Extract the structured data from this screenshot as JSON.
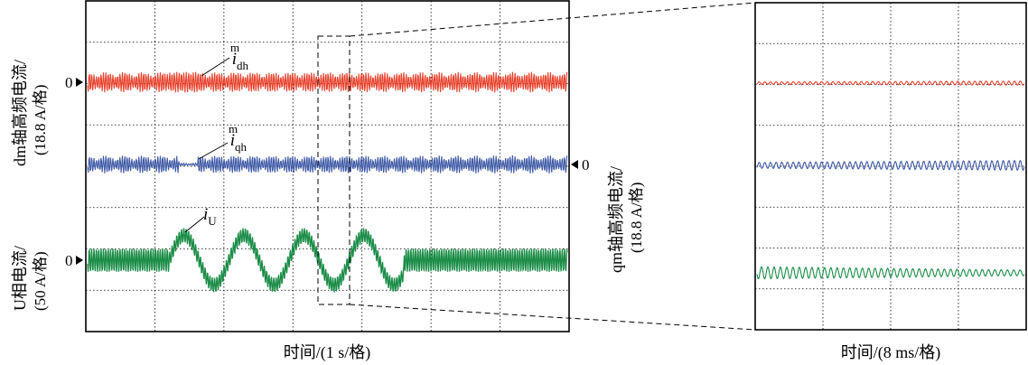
{
  "chart_data": [
    {
      "panel": "left",
      "type": "line",
      "xlabel": "时间/(1 s/格)",
      "axis_labels_left": [
        {
          "text": "dm轴高频电流/",
          "sub": "(18.8 A/格)"
        },
        {
          "text": "U相电流/",
          "sub": "(50 A/格)"
        }
      ],
      "axis_label_mid": {
        "text": "qm轴高频电流/",
        "sub": "(18.8 A/格)"
      },
      "zero_markers": [
        {
          "text": "0",
          "side": "left",
          "trace": "idh"
        },
        {
          "text": "0",
          "side": "right",
          "trace": "iqh"
        },
        {
          "text": "0",
          "side": "left",
          "trace": "iU"
        }
      ],
      "x_divisions": 7,
      "y_divisions": 8,
      "grid": true,
      "series": [
        {
          "name": "i_dh^m",
          "label_main": "i",
          "label_sub": "dh",
          "label_sup": "m",
          "color": "#e8402a",
          "amplitude_div": 0.25,
          "note": "HF envelope, beats"
        },
        {
          "name": "i_qh^m",
          "label_main": "i",
          "label_sub": "qh",
          "label_sup": "m",
          "color": "#3f5aa6",
          "amplitude_div": 0.22,
          "note": "HF envelope, beats"
        },
        {
          "name": "i_U",
          "label_main": "i",
          "label_sub": "U",
          "label_sup": "",
          "color": "#1a8c46",
          "amplitude_div": 0.8,
          "note": "sinusoidal current with HF injection"
        }
      ]
    },
    {
      "panel": "right",
      "type": "line",
      "xlabel": "时间/(8 ms/格)",
      "x_divisions": 4,
      "y_divisions": 8,
      "grid": true,
      "series": [
        {
          "name": "i_dh^m",
          "color": "#e8402a",
          "amplitude_div": 0.05
        },
        {
          "name": "i_qh^m",
          "color": "#3f5aa6",
          "amplitude_div": 0.12
        },
        {
          "name": "i_U",
          "color": "#1a8c46",
          "amplitude_div": 0.15
        }
      ]
    }
  ],
  "colors": {
    "dh": "#e8402a",
    "qh": "#3f5aa6",
    "u": "#1a8c46",
    "grid": "#000000"
  }
}
